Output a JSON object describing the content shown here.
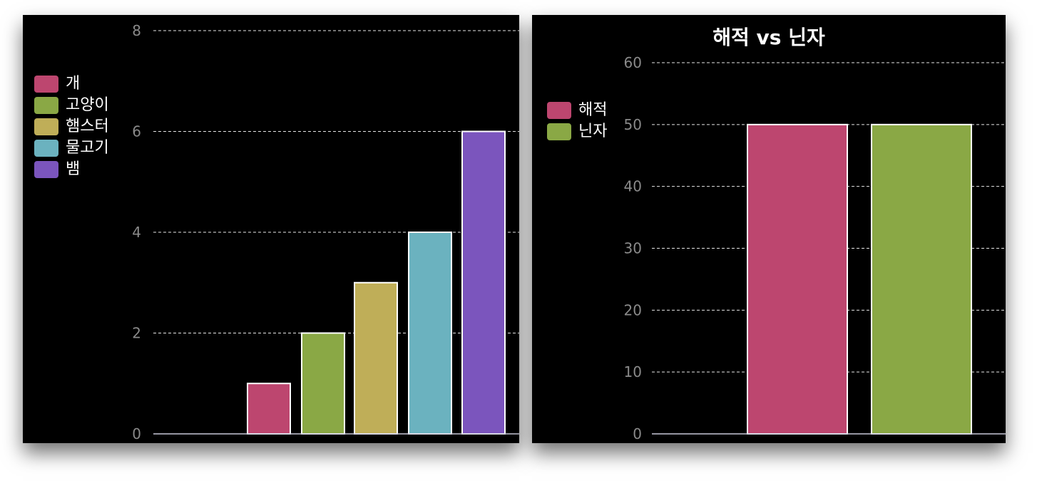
{
  "chart_data": [
    {
      "type": "bar",
      "title": "",
      "categories": [
        "개",
        "고양이",
        "햄스터",
        "물고기",
        "뱀"
      ],
      "values": [
        1,
        2,
        3,
        4,
        6
      ],
      "ylim": [
        0,
        8
      ],
      "yticks": [
        0,
        2,
        4,
        6,
        8
      ],
      "grid": true,
      "legend": "left",
      "colors": [
        "#BD466F",
        "#8AA845",
        "#BFAE58",
        "#6BB2BF",
        "#7B55BD"
      ]
    },
    {
      "type": "bar",
      "title": "해적 vs 닌자",
      "categories": [
        "해적",
        "닌자"
      ],
      "values": [
        50,
        50
      ],
      "ylim": [
        0,
        60
      ],
      "yticks": [
        0,
        10,
        20,
        30,
        40,
        50,
        60
      ],
      "grid": true,
      "legend": "left",
      "colors": [
        "#BD466F",
        "#8AA845"
      ]
    }
  ],
  "style": {
    "background": "#000000",
    "grid_color": "#ffffff",
    "tick_color": "#8a8a8a",
    "bar_border": "#ffffff"
  }
}
